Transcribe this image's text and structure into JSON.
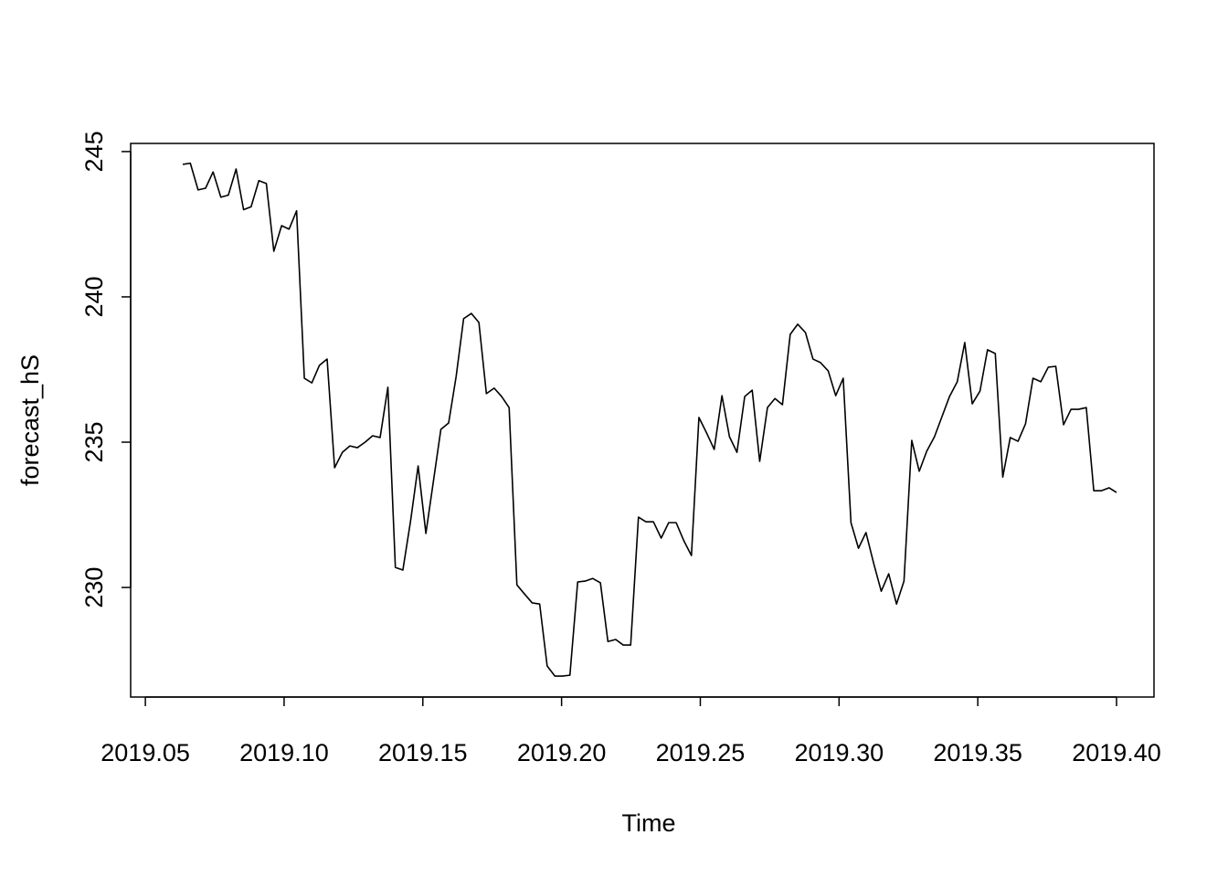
{
  "chart_data": {
    "type": "line",
    "x_label": "Time",
    "y_label": "forecast_hS",
    "x": [
      2019.0635,
      2019.0662,
      2019.069,
      2019.0717,
      2019.0744,
      2019.0772,
      2019.0799,
      2019.0827,
      2019.0854,
      2019.0881,
      2019.0909,
      2019.0936,
      2019.0963,
      2019.0991,
      2019.1018,
      2019.1045,
      2019.1073,
      2019.11,
      2019.1127,
      2019.1155,
      2019.1182,
      2019.121,
      2019.1237,
      2019.1264,
      2019.1292,
      2019.1319,
      2019.1346,
      2019.1374,
      2019.1401,
      2019.1428,
      2019.1456,
      2019.1483,
      2019.1511,
      2019.1538,
      2019.1565,
      2019.1593,
      2019.162,
      2019.1647,
      2019.1675,
      2019.1702,
      2019.1729,
      2019.1757,
      2019.1784,
      2019.1811,
      2019.1839,
      2019.1866,
      2019.1894,
      2019.1921,
      2019.1948,
      2019.1976,
      2019.2003,
      2019.203,
      2019.2058,
      2019.2085,
      2019.2112,
      2019.214,
      2019.2167,
      2019.2195,
      2019.2222,
      2019.2249,
      2019.2277,
      2019.2304,
      2019.2331,
      2019.2359,
      2019.2386,
      2019.2413,
      2019.2441,
      2019.2468,
      2019.2495,
      2019.2523,
      2019.255,
      2019.2578,
      2019.2605,
      2019.2632,
      2019.266,
      2019.2687,
      2019.2714,
      2019.2742,
      2019.2769,
      2019.2796,
      2019.2824,
      2019.2851,
      2019.2879,
      2019.2906,
      2019.2933,
      2019.2961,
      2019.2988,
      2019.3015,
      2019.3043,
      2019.307,
      2019.3097,
      2019.3125,
      2019.3152,
      2019.3179,
      2019.3207,
      2019.3234,
      2019.3262,
      2019.3289,
      2019.3316,
      2019.3344,
      2019.3371,
      2019.3398,
      2019.3426,
      2019.3453,
      2019.348,
      2019.3508,
      2019.3535,
      2019.3563,
      2019.359,
      2019.3617,
      2019.3645,
      2019.3672,
      2019.3699,
      2019.3727,
      2019.3754,
      2019.3781,
      2019.3809,
      2019.3836,
      2019.3863,
      2019.3891,
      2019.3918,
      2019.3946,
      2019.3973,
      2019.4
    ],
    "series": [
      {
        "color": "#000000",
        "values": [
          244.56,
          244.6,
          243.68,
          243.74,
          244.3,
          243.43,
          243.5,
          244.4,
          243.0,
          243.1,
          244.0,
          243.9,
          241.57,
          242.45,
          242.33,
          242.96,
          237.2,
          237.04,
          237.64,
          237.86,
          234.12,
          234.65,
          234.87,
          234.81,
          235.0,
          235.22,
          235.16,
          236.89,
          230.69,
          230.6,
          232.3,
          234.18,
          231.86,
          233.65,
          235.44,
          235.66,
          237.26,
          239.25,
          239.43,
          239.12,
          236.67,
          236.86,
          236.57,
          236.19,
          230.09,
          229.78,
          229.47,
          229.43,
          227.3,
          226.95,
          226.95,
          226.98,
          230.19,
          230.22,
          230.31,
          230.16,
          228.14,
          228.21,
          228.02,
          228.02,
          232.42,
          232.26,
          232.26,
          231.7,
          232.23,
          232.23,
          231.6,
          231.1,
          235.85,
          235.31,
          234.75,
          236.6,
          235.19,
          234.65,
          236.57,
          236.79,
          234.34,
          236.19,
          236.5,
          236.29,
          238.71,
          239.06,
          238.77,
          237.86,
          237.74,
          237.45,
          236.6,
          237.2,
          232.23,
          231.35,
          231.89,
          230.82,
          229.87,
          230.47,
          229.43,
          230.22,
          235.06,
          234.0,
          234.69,
          235.19,
          235.88,
          236.57,
          237.08,
          238.43,
          236.32,
          236.76,
          238.18,
          238.05,
          233.8,
          235.16,
          235.03,
          235.63,
          237.2,
          237.08,
          237.58,
          237.61,
          235.6,
          236.13,
          236.13,
          236.19,
          233.33,
          233.33,
          233.43,
          233.27
        ]
      }
    ],
    "xlim": [
      2019.0447,
      2019.4135
    ],
    "ylim": [
      226.23,
      245.28
    ],
    "xticks": [
      2019.05,
      {
        "value": 2019.1,
        "label": "2019.10"
      },
      2019.15,
      {
        "value": 2019.2,
        "label": "2019.20"
      },
      2019.25,
      {
        "value": 2019.3,
        "label": "2019.30"
      },
      2019.35,
      {
        "value": 2019.4,
        "label": "2019.40"
      }
    ],
    "yticks": [
      230,
      235,
      240,
      245
    ]
  }
}
